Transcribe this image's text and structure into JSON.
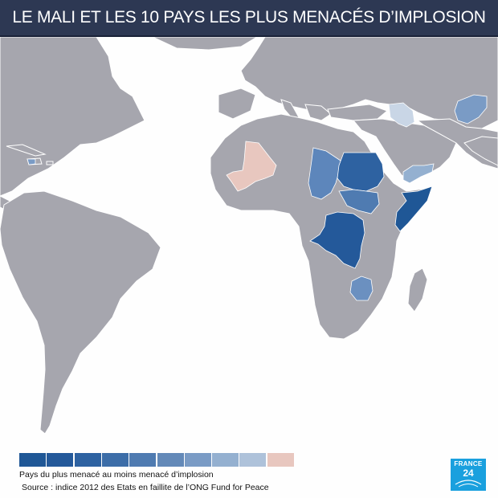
{
  "title": "LE MALI ET LES 10 PAYS LES PLUS MENACÉS D’IMPLOSION",
  "legend": {
    "label": "Pays du plus menacé au moins menacé d’implosion",
    "swatches": [
      "#1f5796",
      "#24599a",
      "#2e62a1",
      "#3c6da8",
      "#4f7bb1",
      "#6389b8",
      "#7a9bc5",
      "#94b0d0",
      "#aec2da",
      "#e8c7bf"
    ]
  },
  "source": "Source : indice 2012 des Etats en faillite de l’ONG Fund for Peace",
  "logo": {
    "brand": "FRANCE",
    "number": "24"
  },
  "colors": {
    "ocean": "#fefefe",
    "land": "#a6a6ae",
    "border": "#ffffff",
    "title_bar": "#2d3853",
    "mali": "#e8c7bf",
    "logo": "#1aa0de"
  },
  "highlighted_countries": [
    {
      "name": "Somalia",
      "rank": 1,
      "color": "#1f5796"
    },
    {
      "name": "DR Congo",
      "rank": 2,
      "color": "#24599a"
    },
    {
      "name": "Sudan",
      "rank": 3,
      "color": "#2e62a1"
    },
    {
      "name": "Chad",
      "rank": 4,
      "color": "#5d86bb"
    },
    {
      "name": "Zimbabwe",
      "rank": 5,
      "color": "#6b90c0"
    },
    {
      "name": "Afghanistan",
      "rank": 6,
      "color": "#7a9bc5"
    },
    {
      "name": "Haiti",
      "rank": 7,
      "color": "#7a9bc5"
    },
    {
      "name": "Yemen",
      "rank": 8,
      "color": "#94b0d0"
    },
    {
      "name": "Iraq",
      "rank": 9,
      "color": "#aec2da"
    },
    {
      "name": "South Sudan",
      "rank": 10,
      "color": "#4f7bb1"
    },
    {
      "name": "Mali",
      "rank": null,
      "color": "#e8c7bf"
    }
  ]
}
